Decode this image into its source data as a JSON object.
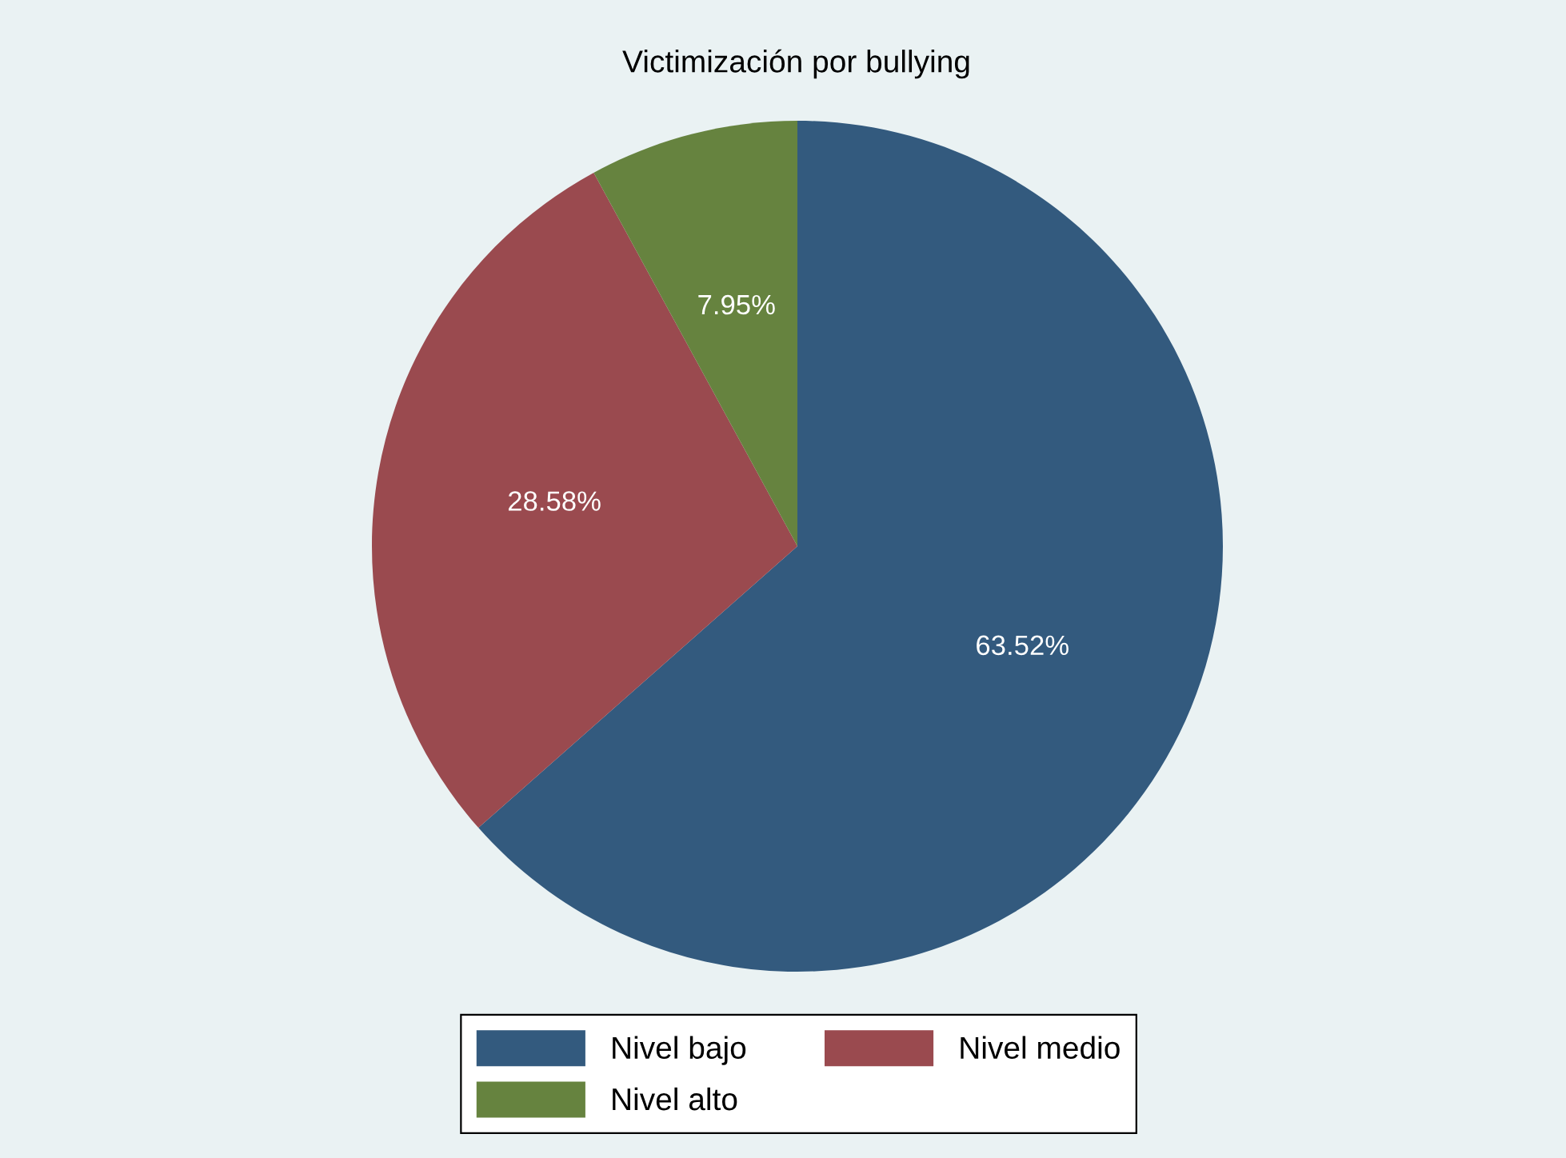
{
  "chart_data": {
    "type": "pie",
    "title": "Victimización por bullying",
    "categories": [
      "Nivel bajo",
      "Nivel medio",
      "Nivel alto"
    ],
    "values": [
      63.52,
      28.58,
      7.95
    ],
    "value_labels": [
      "63.52%",
      "28.58%",
      "7.95%"
    ],
    "colors": [
      "#335a7e",
      "#9a4a4f",
      "#66833f"
    ],
    "legend": "bottom"
  }
}
